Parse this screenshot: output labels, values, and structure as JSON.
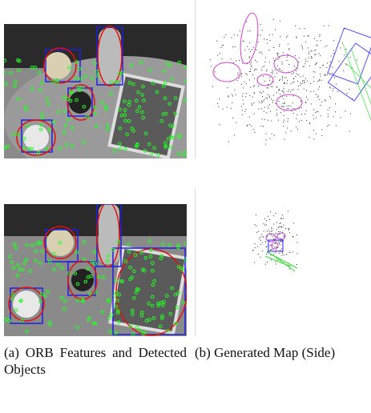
{
  "subfigures": [
    {
      "label": "(a)",
      "caption": "ORB Features and Detected Objects"
    },
    {
      "label": "(b)",
      "caption": "Generated Map (Side)"
    }
  ]
}
